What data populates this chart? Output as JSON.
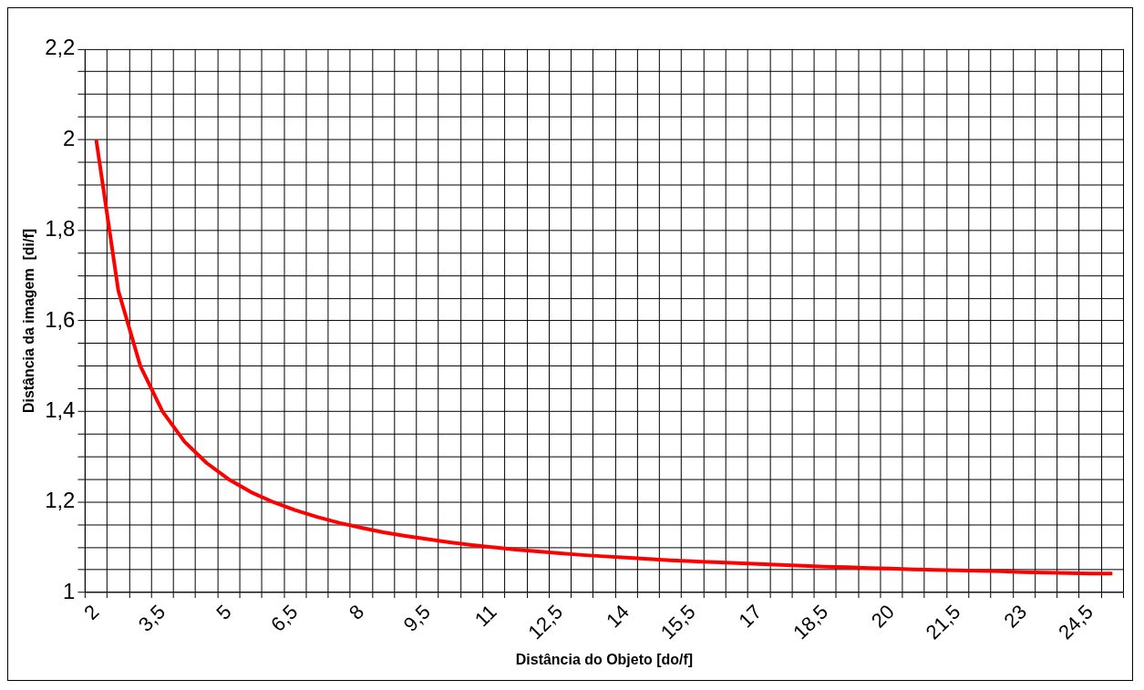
{
  "chart_data": {
    "type": "line",
    "xlabel": "Distância do Objeto [do/f]",
    "ylabel": "Distância da imagem  [di/f]",
    "categories": [
      "2",
      null,
      null,
      "3,5",
      null,
      null,
      "5",
      null,
      null,
      "6,5",
      null,
      null,
      "8",
      null,
      null,
      "9,5",
      null,
      null,
      "11",
      null,
      null,
      "12,5",
      null,
      null,
      "14",
      null,
      null,
      "15,5",
      null,
      null,
      "17",
      null,
      null,
      "18,5",
      null,
      null,
      "20",
      null,
      null,
      "21,5",
      null,
      null,
      "23",
      null,
      null,
      "24,5",
      null
    ],
    "series": [
      {
        "color": "#ff0000",
        "values": [
          2,
          1.667,
          1.5,
          1.4,
          1.333,
          1.286,
          1.25,
          1.222,
          1.2,
          1.182,
          1.167,
          1.154,
          1.143,
          1.133,
          1.125,
          1.118,
          1.111,
          1.105,
          1.1,
          1.095,
          1.091,
          1.087,
          1.083,
          1.08,
          1.077,
          1.074,
          1.071,
          1.069,
          1.067,
          1.065,
          1.063,
          1.061,
          1.059,
          1.057,
          1.056,
          1.054,
          1.053,
          1.051,
          1.05,
          1.049,
          1.048,
          1.047,
          1.045,
          1.044,
          1.043,
          1.042,
          1.042
        ]
      }
    ],
    "ylim": [
      1,
      2.2
    ],
    "yticks": [
      1,
      {
        "value": 1.05,
        "label": null
      },
      {
        "value": 1.1,
        "label": null
      },
      {
        "value": 1.15,
        "label": null
      },
      {
        "value": 1.2,
        "label": "1,2"
      },
      {
        "value": 1.25,
        "label": null
      },
      {
        "value": 1.3,
        "label": null
      },
      {
        "value": 1.35,
        "label": null
      },
      {
        "value": 1.4,
        "label": "1,4"
      },
      {
        "value": 1.45,
        "label": null
      },
      {
        "value": 1.5,
        "label": null
      },
      {
        "value": 1.55,
        "label": null
      },
      {
        "value": 1.6,
        "label": "1,6"
      },
      {
        "value": 1.65,
        "label": null
      },
      {
        "value": 1.7,
        "label": null
      },
      {
        "value": 1.75,
        "label": null
      },
      {
        "value": 1.8,
        "label": "1,8"
      },
      {
        "value": 1.85,
        "label": null
      },
      {
        "value": 1.9,
        "label": null
      },
      {
        "value": 1.95,
        "label": null
      },
      2,
      {
        "value": 2.05,
        "label": null
      },
      {
        "value": 2.1,
        "label": null
      },
      {
        "value": 2.15,
        "label": null
      },
      {
        "value": 2.2,
        "label": "2,2"
      }
    ],
    "grid": true,
    "legend": false,
    "marker": "none",
    "line_style": "solid"
  }
}
